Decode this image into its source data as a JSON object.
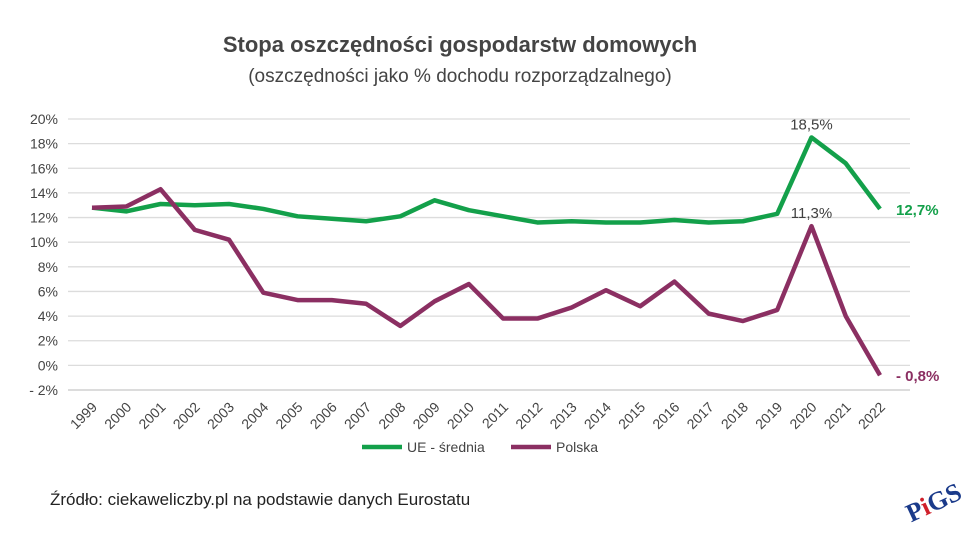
{
  "chart_data": {
    "type": "line",
    "title": "Stopa oszczędności gospodarstw domowych",
    "subtitle": "(oszczędności jako % dochodu rozporządzalnego)",
    "x": [
      "1999",
      "2000",
      "2001",
      "2002",
      "2003",
      "2004",
      "2005",
      "2006",
      "2007",
      "2008",
      "2009",
      "2010",
      "2011",
      "2012",
      "2013",
      "2014",
      "2015",
      "2016",
      "2017",
      "2018",
      "2019",
      "2020",
      "2021",
      "2022"
    ],
    "yticks": [
      "20%",
      "18%",
      "16%",
      "14%",
      "12%",
      "10%",
      "8%",
      "6%",
      "4%",
      "2%",
      "0%",
      "- 2%"
    ],
    "ylim": [
      -2,
      20
    ],
    "grid": true,
    "legend_position": "bottom",
    "series": [
      {
        "name": "UE - średnia",
        "color": "#13a04a",
        "values": [
          12.8,
          12.5,
          13.1,
          13.0,
          13.1,
          12.7,
          12.1,
          11.9,
          11.7,
          12.1,
          13.4,
          12.6,
          12.1,
          11.6,
          11.7,
          11.6,
          11.6,
          11.8,
          11.6,
          11.7,
          12.3,
          18.5,
          16.4,
          12.7
        ]
      },
      {
        "name": "Polska",
        "color": "#8b2f62",
        "values": [
          12.8,
          12.9,
          14.3,
          11.0,
          10.2,
          5.9,
          5.3,
          5.3,
          5.0,
          3.2,
          5.2,
          6.6,
          3.8,
          3.8,
          4.7,
          6.1,
          4.8,
          6.8,
          4.2,
          3.6,
          4.5,
          11.3,
          4.0,
          -0.8
        ]
      }
    ],
    "annotations": [
      {
        "series": 0,
        "index": 21,
        "text": "18,5%",
        "color": "#404040"
      },
      {
        "series": 1,
        "index": 21,
        "text": "11,3%",
        "color": "#404040"
      },
      {
        "series": 0,
        "index": 23,
        "text": "12,7%",
        "color": "#13a04a",
        "side": "right"
      },
      {
        "series": 1,
        "index": 23,
        "text": "- 0,8%",
        "color": "#8b2f62",
        "side": "right"
      }
    ]
  },
  "source": "Źródło: ciekaweliczby.pl na podstawie danych Eurostatu",
  "logo": {
    "text": "PiGS"
  }
}
